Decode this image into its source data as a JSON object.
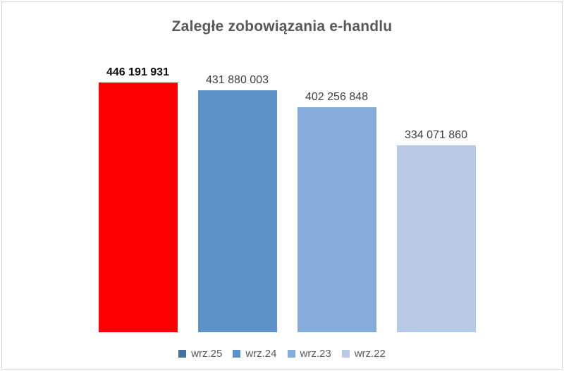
{
  "chart": {
    "background": "#FFFFFF",
    "frame_border_color": "#D5D5D5",
    "title_color": "#595959",
    "label_color": "#404040",
    "emphasized_label_color": "#0D0D0D"
  },
  "chart_data": {
    "type": "bar",
    "title": "Zaległe zobowiązania e-handlu",
    "categories": [
      "wrz.25",
      "wrz.24",
      "wrz.23",
      "wrz.22"
    ],
    "values": [
      446191931,
      431880003,
      402256848,
      334071860
    ],
    "value_labels": [
      "446 191 931",
      "431 880 003",
      "402 256 848",
      "334 071 860"
    ],
    "bar_colors": [
      "#FF0000",
      "#5B92C9",
      "#83ACDB",
      "#B8CAE5"
    ],
    "emphasized_index": 0,
    "xlabel": "",
    "ylabel": "",
    "ylim": [
      0,
      446191931
    ],
    "grid": false,
    "axes_visible": false,
    "legend_position": "bottom"
  },
  "legend": {
    "items": [
      {
        "label": "wrz.25",
        "color": "#41719C"
      },
      {
        "label": "wrz.24",
        "color": "#5B92C9"
      },
      {
        "label": "wrz.23",
        "color": "#83ACDB"
      },
      {
        "label": "wrz.22",
        "color": "#B8CAE5"
      }
    ]
  }
}
